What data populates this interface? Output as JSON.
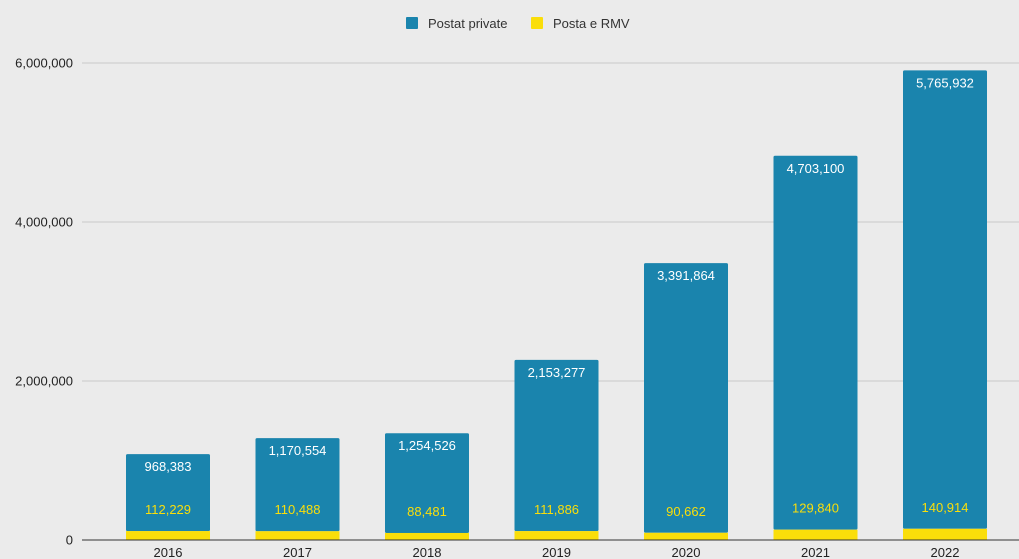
{
  "chart_data": {
    "type": "bar",
    "stacked": true,
    "categories": [
      "2016",
      "2017",
      "2018",
      "2019",
      "2020",
      "2021",
      "2022"
    ],
    "series": [
      {
        "name": "Postat private",
        "color": "#1a84ad",
        "label_color": "#ffffff",
        "values": [
          968383,
          1170554,
          1254526,
          2153277,
          3391864,
          4703100,
          5765932
        ],
        "labels": [
          "968,383",
          "1,170,554",
          "1,254,526",
          "2,153,277",
          "3,391,864",
          "4,703,100",
          "5,765,932"
        ]
      },
      {
        "name": "Posta e RMV",
        "color": "#fade0a",
        "label_color": "#fade0a",
        "values": [
          112229,
          110488,
          88481,
          111886,
          90662,
          129840,
          140914
        ],
        "labels": [
          "112,229",
          "110,488",
          "88,481",
          "111,886",
          "90,662",
          "129,840",
          "140,914"
        ]
      }
    ],
    "ylim": [
      0,
      6000000
    ],
    "y_ticks": [
      {
        "value": 0,
        "label": "0"
      },
      {
        "value": 2000000,
        "label": "2,000,000"
      },
      {
        "value": 4000000,
        "label": "4,000,000"
      },
      {
        "value": 6000000,
        "label": "6,000,000"
      }
    ],
    "grid": true,
    "legend_position": "top-center",
    "title": "",
    "xlabel": "",
    "ylabel": ""
  }
}
